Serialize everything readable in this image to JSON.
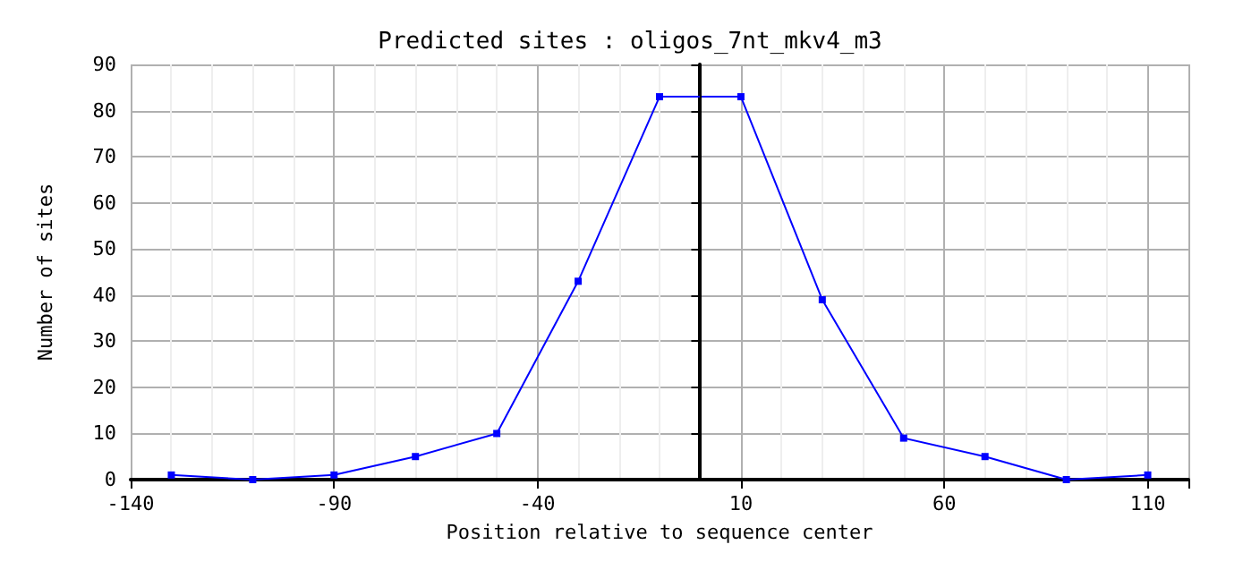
{
  "chart_data": {
    "type": "line",
    "title": "Predicted sites : oligos_7nt_mkv4_m3",
    "xlabel": "Position relative to sequence center",
    "ylabel": "Number of sites",
    "x": [
      -130,
      -110,
      -90,
      -70,
      -50,
      -30,
      -10,
      10,
      30,
      50,
      70,
      90,
      110
    ],
    "series": [
      {
        "color": "#0000ff",
        "values": [
          1,
          0,
          1,
          5,
          10,
          43,
          83,
          83,
          39,
          9,
          5,
          0,
          1
        ]
      }
    ],
    "xlim": [
      -140,
      120
    ],
    "xticks": [
      -140,
      -90,
      -40,
      10,
      60,
      110
    ],
    "ylim": [
      0,
      90
    ],
    "yticks": [
      0,
      10,
      20,
      30,
      40,
      50,
      60,
      70,
      80,
      90
    ],
    "ref_lines": [
      {
        "axis": "x",
        "value": 0,
        "color": "#000000"
      }
    ],
    "grid": true,
    "marker": "square",
    "line_style": "solid"
  }
}
